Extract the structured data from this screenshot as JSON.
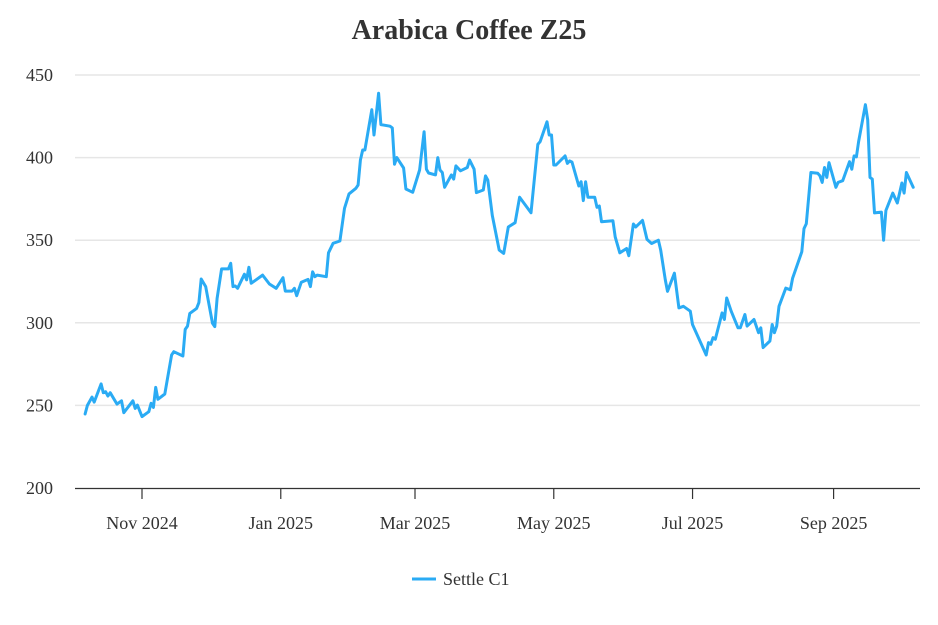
{
  "chart_data": {
    "type": "line",
    "title": "Arabica Coffee Z25",
    "xlabel": "",
    "ylabel": "",
    "ylim": [
      200,
      450
    ],
    "yticks": [
      "200",
      "250",
      "300",
      "350",
      "400",
      "450"
    ],
    "xticks": [
      {
        "label": "Nov 2024",
        "date": "2024-11-01"
      },
      {
        "label": "Jan 2025",
        "date": "2025-01-01"
      },
      {
        "label": "Mar 2025",
        "date": "2025-03-01"
      },
      {
        "label": "May 2025",
        "date": "2025-05-01"
      },
      {
        "label": "Jul 2025",
        "date": "2025-07-01"
      },
      {
        "label": "Sep 2025",
        "date": "2025-09-01"
      }
    ],
    "grid": true,
    "legend_position": "bottom-center",
    "series": [
      {
        "name": "Settle C1",
        "color": "#2aabf4",
        "points": [
          [
            "2024-10-07",
            244.8
          ],
          [
            "2024-10-08",
            250
          ],
          [
            "2024-10-10",
            255
          ],
          [
            "2024-10-11",
            252
          ],
          [
            "2024-10-14",
            263
          ],
          [
            "2024-10-15",
            257.7
          ],
          [
            "2024-10-16",
            258.3
          ],
          [
            "2024-10-17",
            255.7
          ],
          [
            "2024-10-18",
            257.7
          ],
          [
            "2024-10-21",
            250.8
          ],
          [
            "2024-10-23",
            252.8
          ],
          [
            "2024-10-24",
            245.6
          ],
          [
            "2024-10-28",
            252.8
          ],
          [
            "2024-10-29",
            248.2
          ],
          [
            "2024-10-30",
            250.2
          ],
          [
            "2024-11-01",
            243.2
          ],
          [
            "2024-11-04",
            246.2
          ],
          [
            "2024-11-05",
            251.3
          ],
          [
            "2024-11-06",
            248.8
          ],
          [
            "2024-11-07",
            260.9
          ],
          [
            "2024-11-08",
            253.7
          ],
          [
            "2024-11-11",
            256.9
          ],
          [
            "2024-11-14",
            280.5
          ],
          [
            "2024-11-15",
            282.5
          ],
          [
            "2024-11-19",
            279.9
          ],
          [
            "2024-11-20",
            296
          ],
          [
            "2024-11-21",
            298
          ],
          [
            "2024-11-22",
            305.7
          ],
          [
            "2024-11-25",
            308.7
          ],
          [
            "2024-11-26",
            312.2
          ],
          [
            "2024-11-27",
            326.5
          ],
          [
            "2024-11-29",
            321.9
          ],
          [
            "2024-12-02",
            299.7
          ],
          [
            "2024-12-03",
            297.7
          ],
          [
            "2024-12-04",
            314.8
          ],
          [
            "2024-12-06",
            332.6
          ],
          [
            "2024-12-09",
            332.6
          ],
          [
            "2024-12-10",
            336
          ],
          [
            "2024-12-11",
            321.9
          ],
          [
            "2024-12-12",
            322.3
          ],
          [
            "2024-12-13",
            320.9
          ],
          [
            "2024-12-16",
            329.4
          ],
          [
            "2024-12-17",
            326
          ],
          [
            "2024-12-18",
            333.6
          ],
          [
            "2024-12-19",
            323.9
          ],
          [
            "2024-12-24",
            328.9
          ],
          [
            "2024-12-27",
            323.5
          ],
          [
            "2024-12-30",
            320.9
          ],
          [
            "2025-01-02",
            327.3
          ],
          [
            "2025-01-03",
            319.2
          ],
          [
            "2025-01-06",
            319.2
          ],
          [
            "2025-01-07",
            320.9
          ],
          [
            "2025-01-08",
            316.4
          ],
          [
            "2025-01-10",
            324.6
          ],
          [
            "2025-01-13",
            326.3
          ],
          [
            "2025-01-14",
            321.9
          ],
          [
            "2025-01-15",
            330.9
          ],
          [
            "2025-01-16",
            327.9
          ],
          [
            "2025-01-17",
            328.9
          ],
          [
            "2025-01-21",
            327.9
          ],
          [
            "2025-01-22",
            342.4
          ],
          [
            "2025-01-24",
            348.1
          ],
          [
            "2025-01-27",
            349.5
          ],
          [
            "2025-01-29",
            369.3
          ],
          [
            "2025-01-31",
            378
          ],
          [
            "2025-02-03",
            381.4
          ],
          [
            "2025-02-04",
            383.4
          ],
          [
            "2025-02-05",
            398.5
          ],
          [
            "2025-02-06",
            404.6
          ],
          [
            "2025-02-07",
            404.6
          ],
          [
            "2025-02-10",
            429
          ],
          [
            "2025-02-11",
            413.7
          ],
          [
            "2025-02-13",
            439
          ],
          [
            "2025-02-14",
            420
          ],
          [
            "2025-02-18",
            419
          ],
          [
            "2025-02-19",
            418
          ],
          [
            "2025-02-20",
            396
          ],
          [
            "2025-02-21",
            400
          ],
          [
            "2025-02-24",
            393.7
          ],
          [
            "2025-02-25",
            381
          ],
          [
            "2025-02-28",
            379
          ],
          [
            "2025-03-03",
            392.5
          ],
          [
            "2025-03-05",
            415.7
          ],
          [
            "2025-03-06",
            393
          ],
          [
            "2025-03-07",
            390.7
          ],
          [
            "2025-03-10",
            389.5
          ],
          [
            "2025-03-11",
            400
          ],
          [
            "2025-03-12",
            392.5
          ],
          [
            "2025-03-13",
            391
          ],
          [
            "2025-03-14",
            382
          ],
          [
            "2025-03-17",
            389.5
          ],
          [
            "2025-03-18",
            387
          ],
          [
            "2025-03-19",
            395
          ],
          [
            "2025-03-21",
            392
          ],
          [
            "2025-03-24",
            394
          ],
          [
            "2025-03-25",
            398.5
          ],
          [
            "2025-03-27",
            393
          ],
          [
            "2025-03-28",
            378.8
          ],
          [
            "2025-03-31",
            380.4
          ],
          [
            "2025-04-01",
            388.9
          ],
          [
            "2025-04-02",
            386.4
          ],
          [
            "2025-04-04",
            365
          ],
          [
            "2025-04-07",
            344
          ],
          [
            "2025-04-09",
            342
          ],
          [
            "2025-04-11",
            358
          ],
          [
            "2025-04-14",
            360.6
          ],
          [
            "2025-04-16",
            376
          ],
          [
            "2025-04-21",
            366.6
          ],
          [
            "2025-04-24",
            408
          ],
          [
            "2025-04-25",
            409.6
          ],
          [
            "2025-04-28",
            421.7
          ],
          [
            "2025-04-29",
            413.7
          ],
          [
            "2025-04-30",
            413.7
          ],
          [
            "2025-05-01",
            395.5
          ],
          [
            "2025-05-02",
            395.5
          ],
          [
            "2025-05-06",
            401
          ],
          [
            "2025-05-07",
            396.5
          ],
          [
            "2025-05-08",
            398
          ],
          [
            "2025-05-09",
            397.3
          ],
          [
            "2025-05-12",
            382.8
          ],
          [
            "2025-05-13",
            385.4
          ],
          [
            "2025-05-14",
            374
          ],
          [
            "2025-05-15",
            385.4
          ],
          [
            "2025-05-16",
            376
          ],
          [
            "2025-05-19",
            376
          ],
          [
            "2025-05-20",
            369.9
          ],
          [
            "2025-05-21",
            370.7
          ],
          [
            "2025-05-22",
            361.2
          ],
          [
            "2025-05-27",
            361.8
          ],
          [
            "2025-05-28",
            352
          ],
          [
            "2025-05-30",
            342.4
          ],
          [
            "2025-06-02",
            345
          ],
          [
            "2025-06-03",
            340.6
          ],
          [
            "2025-06-05",
            359.8
          ],
          [
            "2025-06-06",
            358
          ],
          [
            "2025-06-09",
            362
          ],
          [
            "2025-06-11",
            350.5
          ],
          [
            "2025-06-13",
            348
          ],
          [
            "2025-06-16",
            350
          ],
          [
            "2025-06-17",
            344
          ],
          [
            "2025-06-19",
            326
          ],
          [
            "2025-06-20",
            319
          ],
          [
            "2025-06-23",
            330
          ],
          [
            "2025-06-25",
            309
          ],
          [
            "2025-06-27",
            310
          ],
          [
            "2025-06-30",
            307
          ],
          [
            "2025-07-01",
            299
          ],
          [
            "2025-07-07",
            280.5
          ],
          [
            "2025-07-08",
            288
          ],
          [
            "2025-07-09",
            287
          ],
          [
            "2025-07-10",
            291
          ],
          [
            "2025-07-11",
            290
          ],
          [
            "2025-07-14",
            306
          ],
          [
            "2025-07-15",
            302
          ],
          [
            "2025-07-16",
            315
          ],
          [
            "2025-07-18",
            307
          ],
          [
            "2025-07-21",
            297
          ],
          [
            "2025-07-22",
            297
          ],
          [
            "2025-07-24",
            305
          ],
          [
            "2025-07-25",
            298
          ],
          [
            "2025-07-28",
            302
          ],
          [
            "2025-07-30",
            294
          ],
          [
            "2025-07-31",
            297
          ],
          [
            "2025-08-01",
            285
          ],
          [
            "2025-08-04",
            289
          ],
          [
            "2025-08-05",
            299
          ],
          [
            "2025-08-06",
            294
          ],
          [
            "2025-08-07",
            298
          ],
          [
            "2025-08-08",
            310
          ],
          [
            "2025-08-11",
            321
          ],
          [
            "2025-08-13",
            320
          ],
          [
            "2025-08-14",
            327
          ],
          [
            "2025-08-18",
            343
          ],
          [
            "2025-08-19",
            357
          ],
          [
            "2025-08-20",
            360
          ],
          [
            "2025-08-22",
            391
          ],
          [
            "2025-08-25",
            390.5
          ],
          [
            "2025-08-26",
            389
          ],
          [
            "2025-08-27",
            385
          ],
          [
            "2025-08-28",
            394
          ],
          [
            "2025-08-29",
            388
          ],
          [
            "2025-08-30",
            397
          ],
          [
            "2025-09-02",
            382
          ],
          [
            "2025-09-03",
            385
          ],
          [
            "2025-09-05",
            386
          ],
          [
            "2025-09-08",
            397.5
          ],
          [
            "2025-09-09",
            393
          ],
          [
            "2025-09-10",
            401
          ],
          [
            "2025-09-11",
            400.5
          ],
          [
            "2025-09-12",
            409.6
          ],
          [
            "2025-09-15",
            432
          ],
          [
            "2025-09-16",
            422.8
          ],
          [
            "2025-09-17",
            388
          ],
          [
            "2025-09-18",
            387
          ],
          [
            "2025-09-19",
            366.5
          ],
          [
            "2025-09-22",
            367
          ],
          [
            "2025-09-23",
            350
          ],
          [
            "2025-09-24",
            368
          ],
          [
            "2025-09-27",
            378.5
          ],
          [
            "2025-09-29",
            372.5
          ],
          [
            "2025-10-01",
            384.6
          ],
          [
            "2025-10-02",
            378.5
          ],
          [
            "2025-10-03",
            391
          ],
          [
            "2025-10-06",
            382
          ]
        ]
      }
    ]
  }
}
